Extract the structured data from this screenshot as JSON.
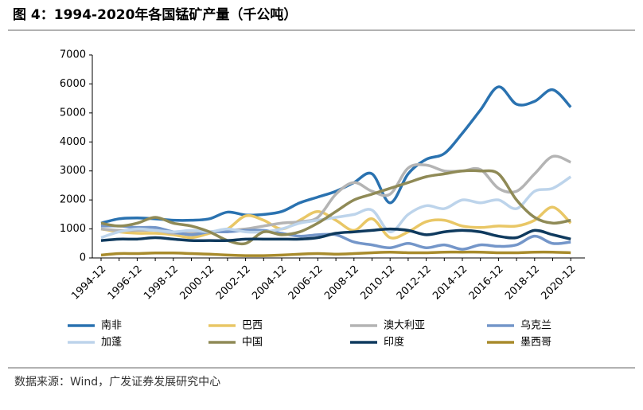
{
  "chart_data": {
    "type": "line",
    "title": "图 4：1994-2020年各国锰矿产量（千公吨）",
    "source": "数据来源：Wind，广发证券发展研究中心",
    "categories": [
      "1994-12",
      null,
      "1996-12",
      null,
      "1998-12",
      null,
      "2000-12",
      null,
      "2002-12",
      null,
      "2004-12",
      null,
      "2006-12",
      null,
      "2008-12",
      null,
      "2010-12",
      null,
      "2012-12",
      null,
      "2014-12",
      null,
      "2016-12",
      null,
      "2018-12",
      null,
      "2020-12"
    ],
    "ylim": [
      0,
      7000
    ],
    "yticks": [
      0,
      1000,
      2000,
      3000,
      4000,
      5000,
      6000,
      7000
    ],
    "series": [
      {
        "name": "南非",
        "color": "#2a72b0",
        "values": [
          1200,
          1350,
          1380,
          1350,
          1300,
          1300,
          1350,
          1580,
          1480,
          1500,
          1600,
          1900,
          2100,
          2300,
          2600,
          2900,
          1900,
          2900,
          3400,
          3600,
          4300,
          5100,
          5900,
          5300,
          5400,
          5800,
          5200
        ]
      },
      {
        "name": "巴西",
        "color": "#e9c766",
        "values": [
          1000,
          900,
          850,
          850,
          800,
          700,
          850,
          1000,
          1450,
          1300,
          1000,
          1300,
          1600,
          1300,
          950,
          1350,
          700,
          900,
          1250,
          1300,
          1100,
          1050,
          1100,
          1100,
          1300,
          1750,
          1200
        ]
      },
      {
        "name": "澳大利亚",
        "color": "#b4b4b4",
        "values": [
          1000,
          950,
          950,
          950,
          850,
          850,
          900,
          950,
          1000,
          1100,
          1200,
          1250,
          1400,
          2200,
          2600,
          2300,
          2200,
          3100,
          3200,
          3000,
          3000,
          3050,
          2400,
          2300,
          2900,
          3500,
          3300
        ]
      },
      {
        "name": "乌克兰",
        "color": "#7496c9",
        "values": [
          1100,
          1100,
          1050,
          1050,
          900,
          800,
          900,
          900,
          950,
          950,
          850,
          750,
          800,
          800,
          550,
          450,
          350,
          500,
          350,
          450,
          300,
          450,
          400,
          450,
          750,
          500,
          550
        ]
      },
      {
        "name": "加蓬",
        "color": "#bdd4eb",
        "values": [
          700,
          900,
          1000,
          950,
          900,
          950,
          900,
          1000,
          900,
          900,
          1000,
          1200,
          1300,
          1400,
          1500,
          1650,
          900,
          1500,
          1800,
          1700,
          2000,
          1900,
          2000,
          1700,
          2300,
          2400,
          2800
        ]
      },
      {
        "name": "中国",
        "color": "#8f8a56",
        "values": [
          1200,
          1100,
          1200,
          1400,
          1200,
          1100,
          900,
          600,
          500,
          900,
          800,
          900,
          1200,
          1600,
          2000,
          2200,
          2400,
          2600,
          2800,
          2900,
          3000,
          3000,
          2900,
          2000,
          1400,
          1200,
          1300
        ]
      },
      {
        "name": "印度",
        "color": "#0f3a5e",
        "values": [
          600,
          650,
          650,
          700,
          650,
          600,
          600,
          600,
          650,
          650,
          650,
          650,
          700,
          850,
          900,
          950,
          1000,
          950,
          800,
          900,
          950,
          900,
          750,
          700,
          950,
          800,
          650
        ]
      },
      {
        "name": "墨西哥",
        "color": "#a88b2c",
        "values": [
          100,
          150,
          150,
          170,
          170,
          150,
          130,
          100,
          80,
          80,
          100,
          130,
          150,
          130,
          150,
          180,
          200,
          180,
          180,
          200,
          200,
          200,
          180,
          180,
          200,
          200,
          180
        ]
      }
    ]
  }
}
